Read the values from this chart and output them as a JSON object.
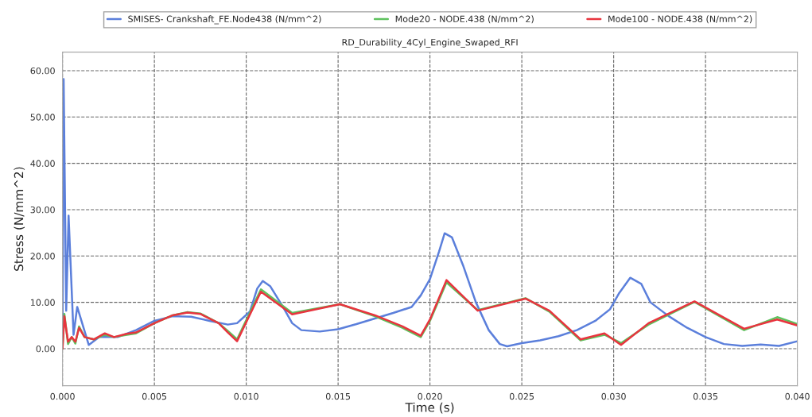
{
  "chart_data": {
    "type": "line",
    "title": "RD_Durability_4Cyl_Engine_Swaped_RFI",
    "xlabel": "Time (s)",
    "ylabel": "Stress (N/mm^2)",
    "xlim": [
      0,
      0.04
    ],
    "ylim": [
      -8,
      64
    ],
    "xticks": [
      {
        "value": 0,
        "label": "0.000"
      },
      {
        "value": 0.005,
        "label": "0.005"
      },
      {
        "value": 0.01,
        "label": "0.010"
      },
      {
        "value": 0.015,
        "label": "0.015"
      },
      {
        "value": 0.02,
        "label": "0.020"
      },
      {
        "value": 0.025,
        "label": "0.025"
      },
      {
        "value": 0.03,
        "label": "0.030"
      },
      {
        "value": 0.035,
        "label": "0.035"
      },
      {
        "value": 0.04,
        "label": "0.040"
      }
    ],
    "yticks": [
      {
        "value": 0,
        "label": "0.00"
      },
      {
        "value": 10,
        "label": "10.00"
      },
      {
        "value": 20,
        "label": "20.00"
      },
      {
        "value": 30,
        "label": "30.00"
      },
      {
        "value": 40,
        "label": "40.00"
      },
      {
        "value": 50,
        "label": "50.00"
      },
      {
        "value": 60,
        "label": "60.00"
      }
    ],
    "grid": true,
    "legend": "top",
    "line_style": "solid",
    "marker": "none",
    "series": [
      {
        "name": "SMISES- Crankshaft_FE.Node438 (N/mm^2)",
        "color": "#5b7fdb",
        "x": [
          0,
          6e-05,
          0.0002,
          0.00033,
          0.0006,
          0.0008,
          0.00143,
          0.002,
          0.003,
          0.004,
          0.005,
          0.006,
          0.007,
          0.008,
          0.009,
          0.0095,
          0.0102,
          0.0106,
          0.0109,
          0.0113,
          0.012,
          0.0125,
          0.013,
          0.014,
          0.015,
          0.016,
          0.017,
          0.018,
          0.019,
          0.0195,
          0.02,
          0.0205,
          0.0208,
          0.0212,
          0.0218,
          0.0225,
          0.0232,
          0.0238,
          0.0242,
          0.025,
          0.026,
          0.027,
          0.028,
          0.029,
          0.0298,
          0.0303,
          0.0309,
          0.0315,
          0.032,
          0.033,
          0.034,
          0.035,
          0.036,
          0.037,
          0.038,
          0.039,
          0.04
        ],
        "values": [
          0,
          58.2,
          8.2,
          28.7,
          3,
          9,
          0.8,
          2.5,
          2.5,
          4,
          6,
          7,
          6.9,
          6,
          5.2,
          5.5,
          8,
          13,
          14.6,
          13.5,
          9,
          5.5,
          4,
          3.7,
          4.2,
          5.3,
          6.5,
          7.7,
          9,
          11.5,
          15,
          21,
          24.9,
          24,
          18,
          10,
          4,
          1,
          0.5,
          1.2,
          1.8,
          2.7,
          4,
          6,
          8.5,
          12,
          15.3,
          14,
          10,
          7,
          4.5,
          2.5,
          1,
          0.6,
          0.9,
          0.6,
          1.6
        ]
      },
      {
        "name": "Mode20 - NODE.438 (N/mm^2)",
        "color": "#5ec25e",
        "x": [
          0,
          0.0001,
          0.0003,
          0.0005,
          0.0007,
          0.0009,
          0.0012,
          0.0017,
          0.0023,
          0.0028,
          0.0035,
          0.004,
          0.005,
          0.006,
          0.0068,
          0.0075,
          0.0085,
          0.009,
          0.0095,
          0.0108,
          0.0125,
          0.0151,
          0.017,
          0.0185,
          0.0195,
          0.02,
          0.0209,
          0.0226,
          0.0252,
          0.0265,
          0.0282,
          0.0295,
          0.0304,
          0.0319,
          0.0344,
          0.036,
          0.0371,
          0.0389,
          0.04
        ],
        "values": [
          0,
          7.5,
          1,
          2.5,
          1.1,
          4.8,
          2.5,
          2,
          3.0,
          2.5,
          3,
          3.3,
          5.5,
          7.2,
          7.9,
          7.6,
          5.5,
          3.8,
          2,
          12.8,
          7.7,
          9.6,
          7,
          4.5,
          2.5,
          6,
          14.3,
          8.3,
          10.9,
          8,
          1.8,
          3,
          1.2,
          5.2,
          10.1,
          6.5,
          4,
          6.8,
          5.3
        ]
      },
      {
        "name": "Mode100 - NODE.438 (N/mm^2)",
        "color": "#e8343e",
        "x": [
          0,
          0.0001,
          0.0003,
          0.0005,
          0.0007,
          0.0009,
          0.0012,
          0.0017,
          0.0023,
          0.0028,
          0.0035,
          0.004,
          0.005,
          0.006,
          0.0068,
          0.0075,
          0.0085,
          0.009,
          0.0095,
          0.0108,
          0.0125,
          0.0151,
          0.017,
          0.0185,
          0.0195,
          0.02,
          0.0209,
          0.0226,
          0.0252,
          0.0265,
          0.0282,
          0.0295,
          0.0304,
          0.0319,
          0.0344,
          0.036,
          0.0371,
          0.0389,
          0.04
        ],
        "values": [
          0,
          7,
          1.5,
          2.5,
          1.5,
          4.5,
          2.5,
          2,
          3.3,
          2.5,
          3.2,
          3.5,
          5.5,
          7.2,
          7.8,
          7.5,
          5.5,
          3.5,
          1.6,
          12.3,
          7.4,
          9.6,
          7.2,
          4.8,
          2.8,
          6.3,
          14.8,
          8.2,
          10.8,
          8.2,
          2,
          3.3,
          0.8,
          5.5,
          10.2,
          6.7,
          4.3,
          6.3,
          5
        ]
      }
    ]
  }
}
